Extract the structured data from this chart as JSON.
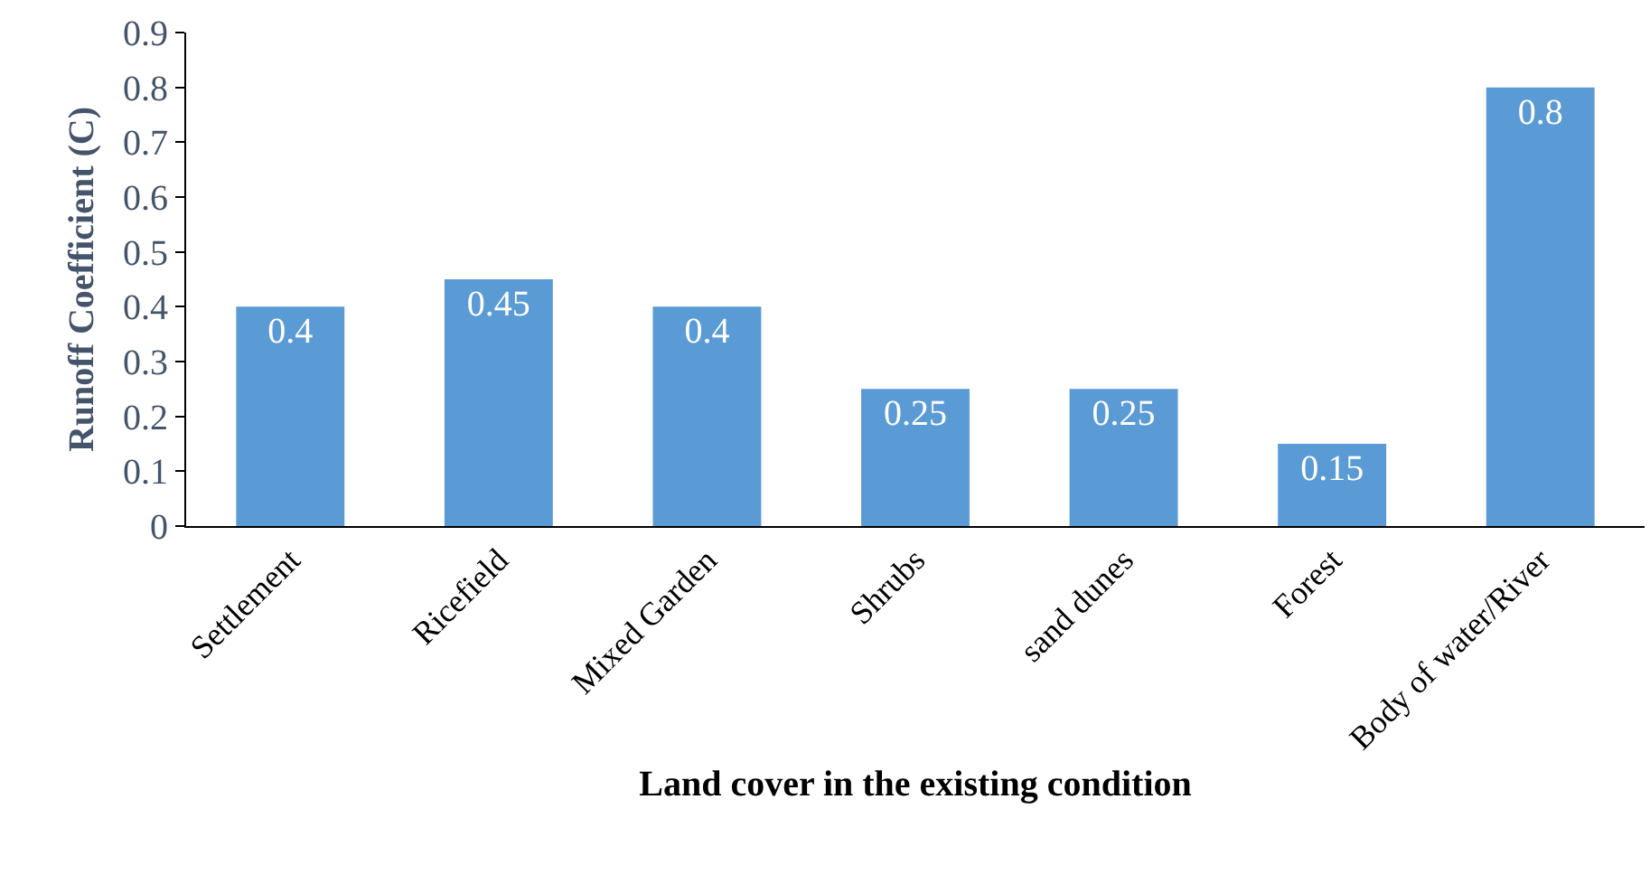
{
  "chart_data": {
    "type": "bar",
    "xlabel": "Land cover in the existing condition",
    "ylabel": "Runoff Coefficient (C)",
    "categories": [
      "Settlement",
      "Ricefield",
      "Mixed Garden",
      "Shrubs",
      "sand dunes",
      "Forest",
      "Body of water/River"
    ],
    "values": [
      0.4,
      0.45,
      0.4,
      0.25,
      0.25,
      0.15,
      0.8
    ],
    "color": "#5b9bd5",
    "ylim": [
      0,
      0.9
    ],
    "yticks": [
      0,
      0.1,
      0.2,
      0.3,
      0.4,
      0.5,
      0.6,
      0.7,
      0.8,
      0.9
    ],
    "data_labels": true,
    "grid": false
  }
}
